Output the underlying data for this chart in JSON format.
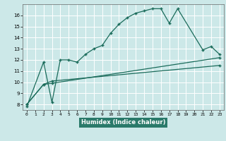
{
  "xlabel": "Humidex (Indice chaleur)",
  "bg_color": "#cce8e8",
  "grid_color": "#ffffff",
  "line_color": "#1a6b5a",
  "xlim": [
    -0.5,
    23.5
  ],
  "ylim": [
    7.5,
    17.0
  ],
  "xticks": [
    0,
    1,
    2,
    3,
    4,
    5,
    6,
    7,
    8,
    9,
    10,
    11,
    12,
    13,
    14,
    15,
    16,
    17,
    18,
    19,
    20,
    21,
    22,
    23
  ],
  "yticks": [
    8,
    9,
    10,
    11,
    12,
    13,
    14,
    15,
    16
  ],
  "line1_x": [
    0,
    2,
    3,
    4,
    5,
    6,
    7,
    8,
    9,
    10,
    11,
    12,
    13,
    14,
    15,
    16,
    17,
    18,
    21,
    22,
    23
  ],
  "line1_y": [
    7.8,
    11.8,
    8.2,
    12.0,
    12.0,
    11.8,
    12.5,
    13.0,
    13.3,
    14.4,
    15.2,
    15.8,
    16.2,
    16.4,
    16.6,
    16.6,
    15.3,
    16.6,
    12.9,
    13.2,
    12.5
  ],
  "line2_x": [
    0,
    2,
    3,
    23
  ],
  "line2_y": [
    8.0,
    9.8,
    9.9,
    12.2
  ],
  "line3_x": [
    0,
    2,
    3,
    23
  ],
  "line3_y": [
    8.0,
    9.8,
    10.1,
    11.5
  ],
  "xlabel_bg": "#2a7a6a",
  "xlabel_color": "#ffffff",
  "marker": "+"
}
